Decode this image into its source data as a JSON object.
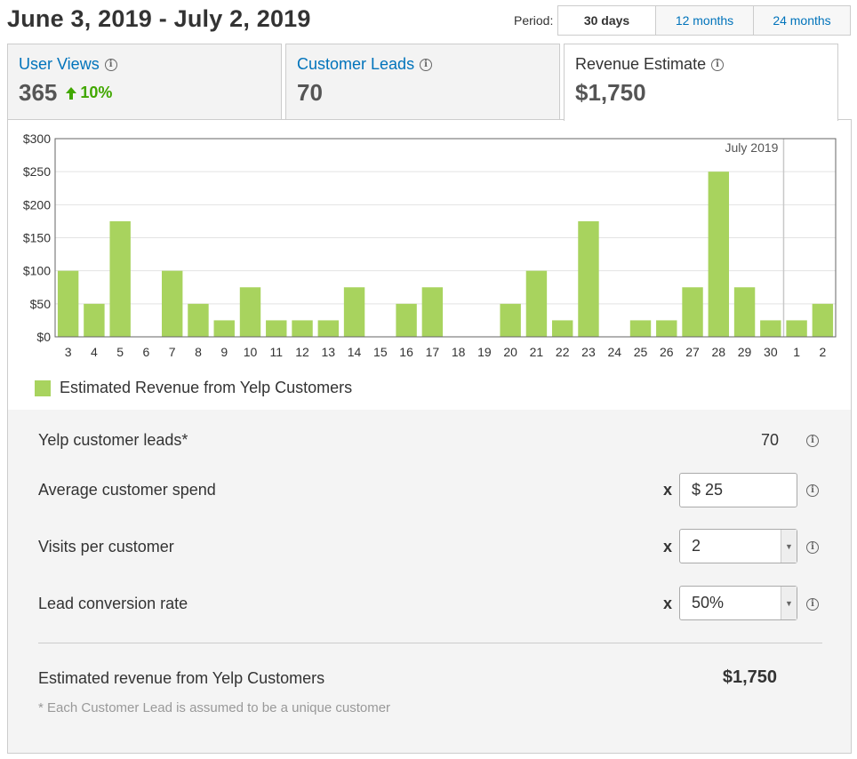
{
  "header": {
    "title": "June 3, 2019 - July 2, 2019",
    "period_label": "Period:",
    "periods": [
      "30 days",
      "12 months",
      "24 months"
    ],
    "active_period": 0
  },
  "tabs": [
    {
      "label": "User Views",
      "value": "365",
      "trend": "10%",
      "trend_direction": "up",
      "info_icon": "info-icon"
    },
    {
      "label": "Customer Leads",
      "value": "70",
      "info_icon": "info-icon"
    },
    {
      "label": "Revenue Estimate",
      "value": "$1,750",
      "info_icon": "info-icon",
      "active": true
    }
  ],
  "chart_data": {
    "type": "bar",
    "categories": [
      "3",
      "4",
      "5",
      "6",
      "7",
      "8",
      "9",
      "10",
      "11",
      "12",
      "13",
      "14",
      "15",
      "16",
      "17",
      "18",
      "19",
      "20",
      "21",
      "22",
      "23",
      "24",
      "25",
      "26",
      "27",
      "28",
      "29",
      "30",
      "1",
      "2"
    ],
    "series": [
      {
        "name": "Estimated Revenue from Yelp Customers",
        "values": [
          100,
          50,
          175,
          0,
          100,
          50,
          25,
          75,
          25,
          25,
          25,
          75,
          0,
          50,
          75,
          0,
          0,
          50,
          100,
          25,
          175,
          0,
          25,
          25,
          75,
          250,
          75,
          25,
          25,
          50
        ]
      }
    ],
    "yticks": [
      "$0",
      "$50",
      "$100",
      "$150",
      "$200",
      "$250",
      "$300"
    ],
    "ylim": [
      0,
      300
    ],
    "grid": true,
    "marker_label": "July 2019",
    "marker_after_category": "30",
    "legend_position": "bottom-left",
    "bar_color": "#a8d35e"
  },
  "calculator": {
    "leads_label": "Yelp customer leads*",
    "leads_value": "70",
    "spend_label": "Average customer spend",
    "spend_value": "$ 25",
    "visits_label": "Visits per customer",
    "visits_value": "2",
    "conversion_label": "Lead conversion rate",
    "conversion_value": "50%",
    "multiplier": "x",
    "estimate_label": "Estimated revenue from Yelp Customers",
    "estimate_value": "$1,750",
    "footnote": "* Each Customer Lead is assumed to be a unique customer"
  },
  "colors": {
    "link": "#0073bb",
    "trend": "#41a700",
    "bar": "#a8d35e"
  }
}
